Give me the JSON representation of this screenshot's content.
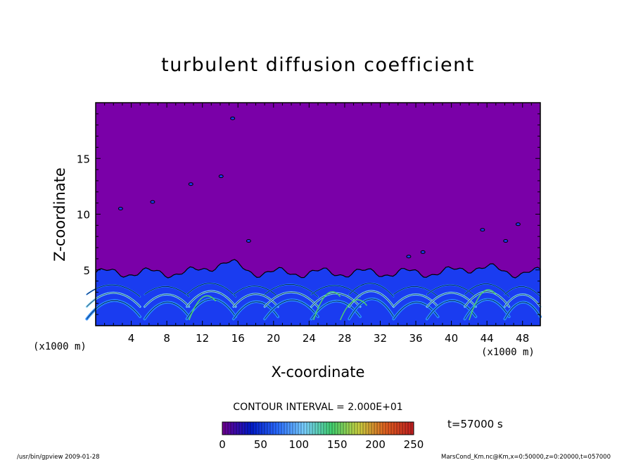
{
  "chart_data": {
    "type": "heatmap",
    "title": "turbulent diffusion coefficient",
    "xlabel": "X-coordinate",
    "ylabel": "Z-coordinate",
    "x_unit": "(x1000 m)",
    "y_unit": "(x1000 m)",
    "xlim": [
      0,
      50
    ],
    "ylim": [
      0,
      20
    ],
    "x_ticks": [
      4,
      8,
      12,
      16,
      20,
      24,
      28,
      32,
      36,
      40,
      44,
      48
    ],
    "y_ticks": [
      5,
      10,
      15
    ],
    "contour_interval_label": "CONTOUR INTERVAL = 2.000E+01",
    "time_label": "t=57000 s",
    "colorbar": {
      "range": [
        0,
        250
      ],
      "ticks": [
        0,
        50,
        100,
        150,
        200,
        250
      ],
      "colors": [
        "#6a0090",
        "#0018c8",
        "#2a6cff",
        "#7ad0ff",
        "#40d070",
        "#c8d040",
        "#e06020",
        "#c02020"
      ]
    },
    "turbulent_layer_top_km": 5,
    "background_value": 0
  },
  "footer": {
    "left": "/usr/bin/gpview   2009-01-28",
    "right": "MarsCond_Km.nc@Km,x=0:50000,z=0:20000,t=057000"
  },
  "colors": {
    "background_field": "#7a00a8",
    "low_field": "#1a3cf0"
  }
}
